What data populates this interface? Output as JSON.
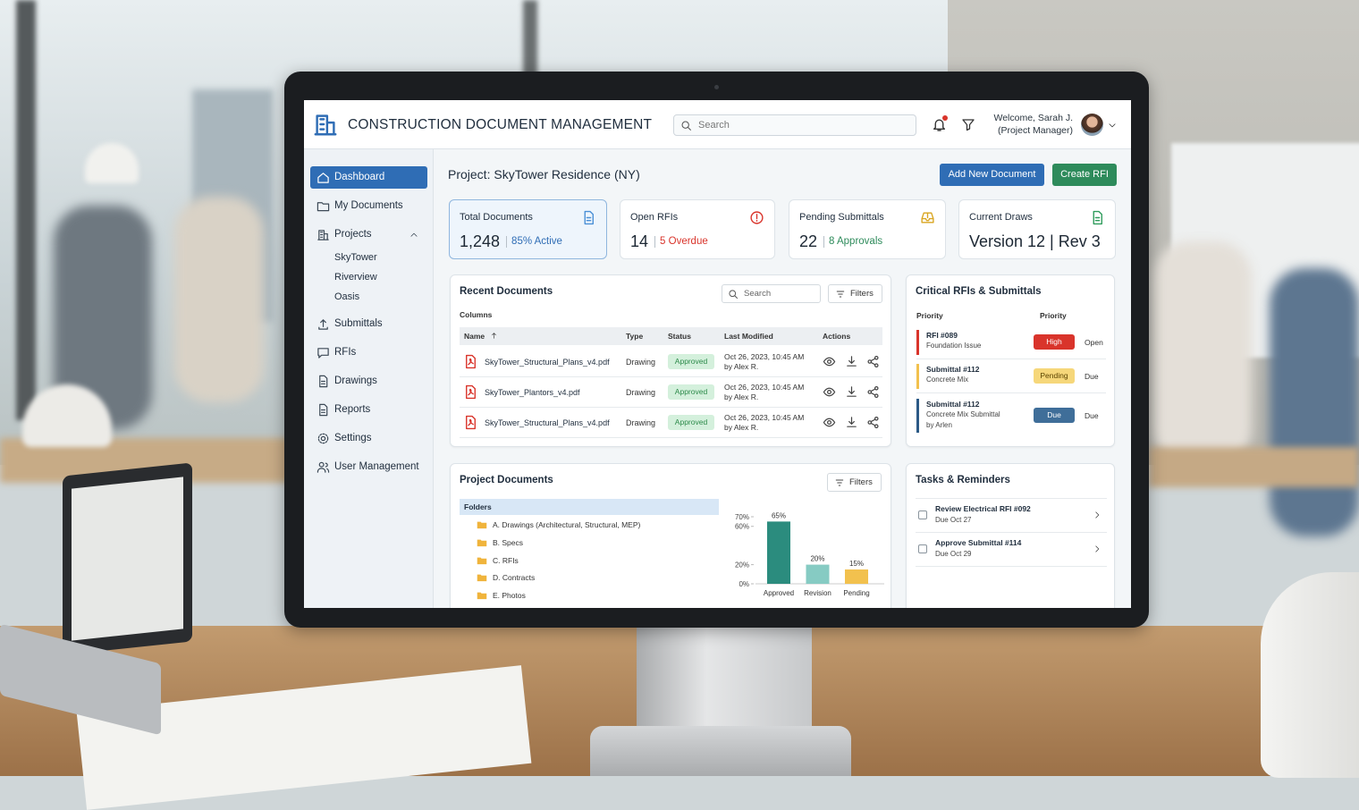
{
  "header": {
    "title": "CONSTRUCTION DOCUMENT MANAGEMENT",
    "search": "Search",
    "welcome": "Welcome, Sarah J.",
    "role": "(Project Manager)"
  },
  "sidebar": {
    "items": [
      "Dashboard",
      "My Documents",
      "Projects",
      "Submittals",
      "RFIs",
      "Drawings",
      "Reports",
      "Settings",
      "User Management"
    ],
    "projects": [
      "SkyTower",
      "Riverview",
      "Oasis"
    ]
  },
  "page": {
    "title": "Project: SkyTower Residence (NY)",
    "buttons": [
      "Add New Document",
      "Create RFI"
    ]
  },
  "stats": [
    {
      "label": "Total Documents",
      "value": "1,248",
      "note": "85% Active"
    },
    {
      "label": "Open RFIs",
      "value": "14",
      "note": "5 Overdue"
    },
    {
      "label": "Pending Submittals",
      "value": "22",
      "note": "8 Approvals"
    },
    {
      "label": "Current Draws",
      "value": "Version 12 | Rev 3"
    }
  ],
  "recent": {
    "title": "Recent Documents",
    "search": "Search",
    "filters": "Filters",
    "columns_label": "Columns",
    "headers": [
      "Name",
      "Type",
      "Status",
      "Last Modified",
      "Actions"
    ],
    "rows": [
      [
        "SkyTower_Structural_Plans_v4.pdf",
        "Drawing",
        "Approved",
        "Oct 26, 2023, 10:45 AM",
        "by Alex R."
      ],
      [
        "SkyTower_Plantors_v4.pdf",
        "Drawing",
        "Approved",
        "Oct 26, 2023, 10:45 AM",
        "by Alex R."
      ],
      [
        "SkyTower_Structural_Plans_v4.pdf",
        "Drawing",
        "Approved",
        "Oct 26, 2023, 10:45 AM",
        "by Alex R."
      ]
    ]
  },
  "critical": {
    "title": "Critical RFIs & Submittals",
    "headers": [
      "Priority",
      "Priority"
    ],
    "rows": [
      {
        "title": "RFI #089",
        "detail": "Foundation Issue",
        "priority": "High",
        "status": "Open"
      },
      {
        "title": "Submittal #112",
        "detail": "Concrete Mix",
        "priority": "Pending",
        "status": "Due"
      },
      {
        "title": "Submittal #112",
        "detail": "Concrete Mix Submittal",
        "by": "by Arlen",
        "priority": "Due",
        "status": "Due"
      }
    ]
  },
  "project_documents": {
    "title": "Project Documents",
    "filters": "Filters",
    "folders_header": "Folders",
    "folders": [
      "A. Drawings (Architectural, Structural, MEP)",
      "B. Specs",
      "C. RFIs",
      "D. Contracts",
      "E. Photos"
    ]
  },
  "chart_data": {
    "type": "bar",
    "categories": [
      "Approved",
      "Revision",
      "Pending"
    ],
    "values": [
      65,
      20,
      15
    ],
    "value_labels": [
      "65%",
      "20%",
      "15%"
    ],
    "colors": [
      "#2b8c7e",
      "#86cbc3",
      "#f2c14e"
    ],
    "ylim": [
      0,
      70
    ],
    "yticks": [
      {
        "value": 0,
        "label": "0%"
      },
      {
        "value": 20,
        "label": "20%"
      },
      {
        "value": 60,
        "label": "60%"
      },
      {
        "value": 70,
        "label": "70%"
      }
    ]
  },
  "tasks": {
    "title": "Tasks & Reminders",
    "items": [
      {
        "title": "Review Electrical RFI #092",
        "due": "Due Oct 27"
      },
      {
        "title": "Approve Submittal #114",
        "due": "Due Oct 29"
      }
    ]
  }
}
